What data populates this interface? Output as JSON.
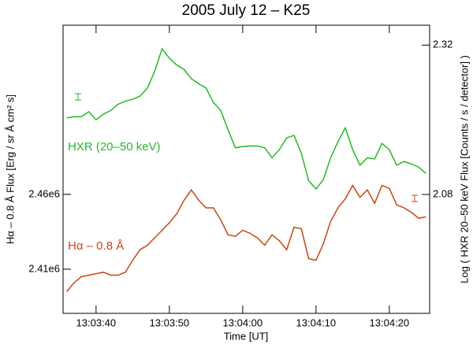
{
  "chart_data": {
    "type": "line",
    "title": "2005 July 12  –  K25",
    "xlabel": "Time [UT]",
    "ylabel": "Hα – 0.8 Å  Flux  [Erg / sr Å cm² s]",
    "y2label": "Log ( HXR 20–50 keV Flux [Counts / s / detector] )",
    "x": [
      47016,
      47017,
      47018,
      47019,
      47020,
      47021,
      47022,
      47023,
      47024,
      47025,
      47026,
      47027,
      47028,
      47029,
      47030,
      47031,
      47032,
      47033,
      47034,
      47035,
      47036,
      47037,
      47038,
      47039,
      47040,
      47041,
      47042,
      47043,
      47044,
      47045,
      47046,
      47047,
      47048,
      47049,
      47050,
      47051,
      47052,
      47053,
      47054,
      47055,
      47056,
      47057,
      47058,
      47059,
      47060,
      47061,
      47062,
      47063,
      47064,
      47065
    ],
    "xlim": [
      47015.5,
      47065.5
    ],
    "xticks": [
      {
        "value": 47020,
        "label": "13:03:40"
      },
      {
        "value": 47030,
        "label": "13:03:50"
      },
      {
        "value": 47040,
        "label": "13:04:00"
      },
      {
        "value": 47050,
        "label": "13:04:10"
      },
      {
        "value": 47060,
        "label": "13:04:20"
      }
    ],
    "ylim": [
      2380500,
      2573000
    ],
    "yticks": [
      {
        "value": 2410000,
        "label": "2.41e6"
      },
      {
        "value": 2460000,
        "label": "2.46e6"
      }
    ],
    "y2lim": [
      1.889,
      2.352
    ],
    "y2ticks": [
      2.08,
      2.32
    ],
    "series": [
      {
        "name": "HXR (20–50 keV)",
        "color": "#22bb22",
        "axis": "y2",
        "values": [
          2.203,
          2.205,
          2.205,
          2.213,
          2.2,
          2.209,
          2.215,
          2.225,
          2.23,
          2.233,
          2.238,
          2.251,
          2.278,
          2.314,
          2.299,
          2.288,
          2.281,
          2.266,
          2.258,
          2.251,
          2.228,
          2.215,
          2.184,
          2.155,
          2.157,
          2.158,
          2.158,
          2.155,
          2.139,
          2.152,
          2.171,
          2.175,
          2.146,
          2.102,
          2.089,
          2.104,
          2.139,
          2.165,
          2.187,
          2.152,
          2.127,
          2.139,
          2.137,
          2.162,
          2.152,
          2.127,
          2.133,
          2.129,
          2.124,
          2.114
        ]
      },
      {
        "name": "Hα – 0.8 Å",
        "color": "#cc4411",
        "values": [
          2395000,
          2401000,
          2405000,
          2406000,
          2407000,
          2408000,
          2406000,
          2406000,
          2408000,
          2416000,
          2423000,
          2426000,
          2431000,
          2436000,
          2441000,
          2447000,
          2456000,
          2463000,
          2456000,
          2451000,
          2451000,
          2443000,
          2433000,
          2432000,
          2436000,
          2434000,
          2431000,
          2426000,
          2433000,
          2429000,
          2423000,
          2438000,
          2437000,
          2417000,
          2416000,
          2427000,
          2442000,
          2451000,
          2457000,
          2466000,
          2458000,
          2463000,
          2454000,
          2466000,
          2464000,
          2453000,
          2451000,
          2448000,
          2444000,
          2445000
        ]
      }
    ]
  }
}
